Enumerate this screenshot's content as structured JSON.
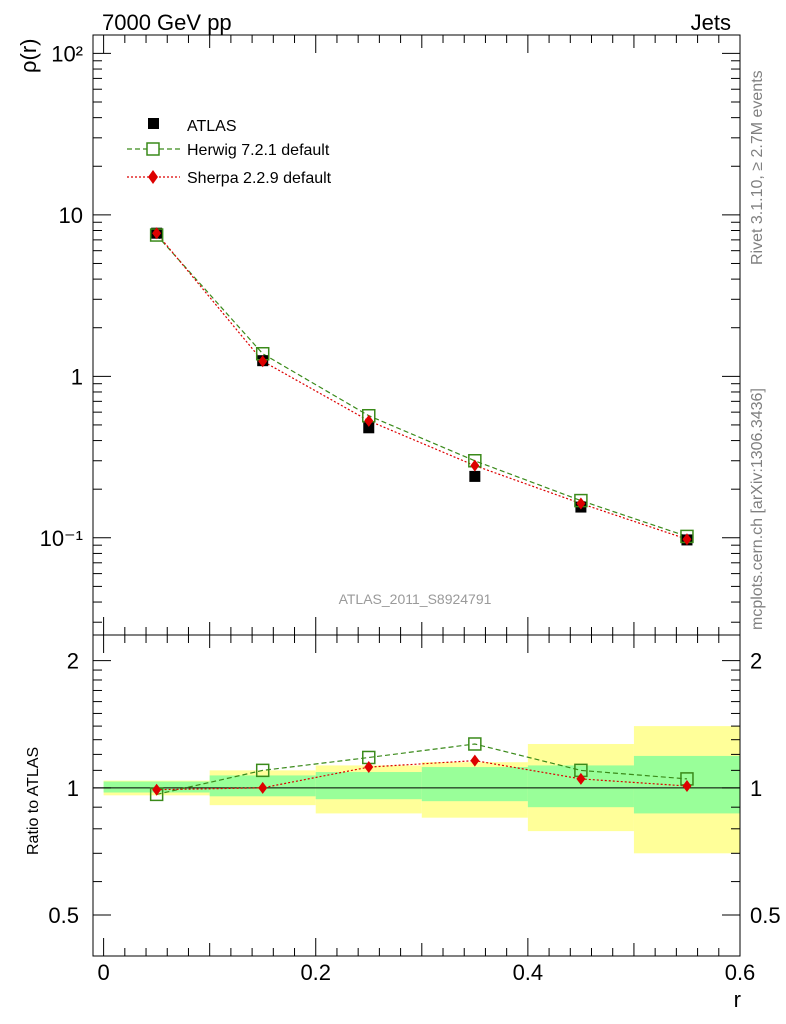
{
  "header": {
    "left_title": "7000 GeV pp",
    "right_title": "Jets"
  },
  "side_labels": {
    "rivet": "Rivet 3.1.10, ≥ 2.7M events",
    "mcplots": "mcplots.cern.ch [arXiv:1306.3436]"
  },
  "watermark": "ATLAS_2011_S8924791",
  "legend": {
    "atlas": "ATLAS",
    "herwig": "Herwig 7.2.1 default",
    "sherpa": "Sherpa 2.2.9 default"
  },
  "colors": {
    "atlas": "#000000",
    "herwig": "#3a8a1a",
    "sherpa": "#dd0000",
    "band_inner": "#99ff99",
    "band_outer": "#ffff99"
  },
  "chart_data": [
    {
      "type": "scatter",
      "ylabel": "ρ(r)",
      "yscale": "log",
      "ylim": [
        0.025,
        130
      ],
      "xlim": [
        -0.01,
        0.6
      ],
      "ytick_labels": [
        "10⁻¹",
        "1",
        "10",
        "10²"
      ],
      "x": [
        0.05,
        0.15,
        0.25,
        0.35,
        0.45,
        0.55
      ],
      "series": [
        {
          "name": "ATLAS",
          "values": [
            7.7,
            1.25,
            0.48,
            0.24,
            0.155,
            0.097
          ]
        },
        {
          "name": "Herwig 7.2.1 default",
          "values": [
            7.5,
            1.38,
            0.57,
            0.3,
            0.17,
            0.102
          ]
        },
        {
          "name": "Sherpa 2.2.9 default",
          "values": [
            7.7,
            1.24,
            0.53,
            0.28,
            0.163,
            0.098
          ]
        }
      ]
    },
    {
      "type": "scatter",
      "ylabel": "Ratio to ATLAS",
      "xlabel": "r",
      "ylim": [
        0.4,
        2.3
      ],
      "xlim": [
        -0.01,
        0.6
      ],
      "x_tick_labels": [
        "0",
        "0.2",
        "0.4",
        "0.6"
      ],
      "y_tick_labels": [
        "0.5",
        "1",
        "2"
      ],
      "bins": [
        [
          0.0,
          0.1
        ],
        [
          0.1,
          0.2
        ],
        [
          0.2,
          0.3
        ],
        [
          0.3,
          0.4
        ],
        [
          0.4,
          0.5
        ],
        [
          0.5,
          0.6
        ]
      ],
      "band_inner": [
        [
          0.975,
          1.035
        ],
        [
          0.955,
          1.07
        ],
        [
          0.94,
          1.09
        ],
        [
          0.93,
          1.12
        ],
        [
          0.9,
          1.13
        ],
        [
          0.87,
          1.19
        ]
      ],
      "band_outer": [
        [
          0.96,
          1.04
        ],
        [
          0.91,
          1.1
        ],
        [
          0.87,
          1.13
        ],
        [
          0.85,
          1.15
        ],
        [
          0.79,
          1.27
        ],
        [
          0.7,
          1.4
        ]
      ],
      "series": [
        {
          "name": "Herwig 7.2.1 default",
          "values": [
            0.965,
            1.1,
            1.18,
            1.27,
            1.1,
            1.05
          ]
        },
        {
          "name": "Sherpa 2.2.9 default",
          "values": [
            0.99,
            1.0,
            1.12,
            1.16,
            1.05,
            1.01
          ]
        }
      ]
    }
  ]
}
